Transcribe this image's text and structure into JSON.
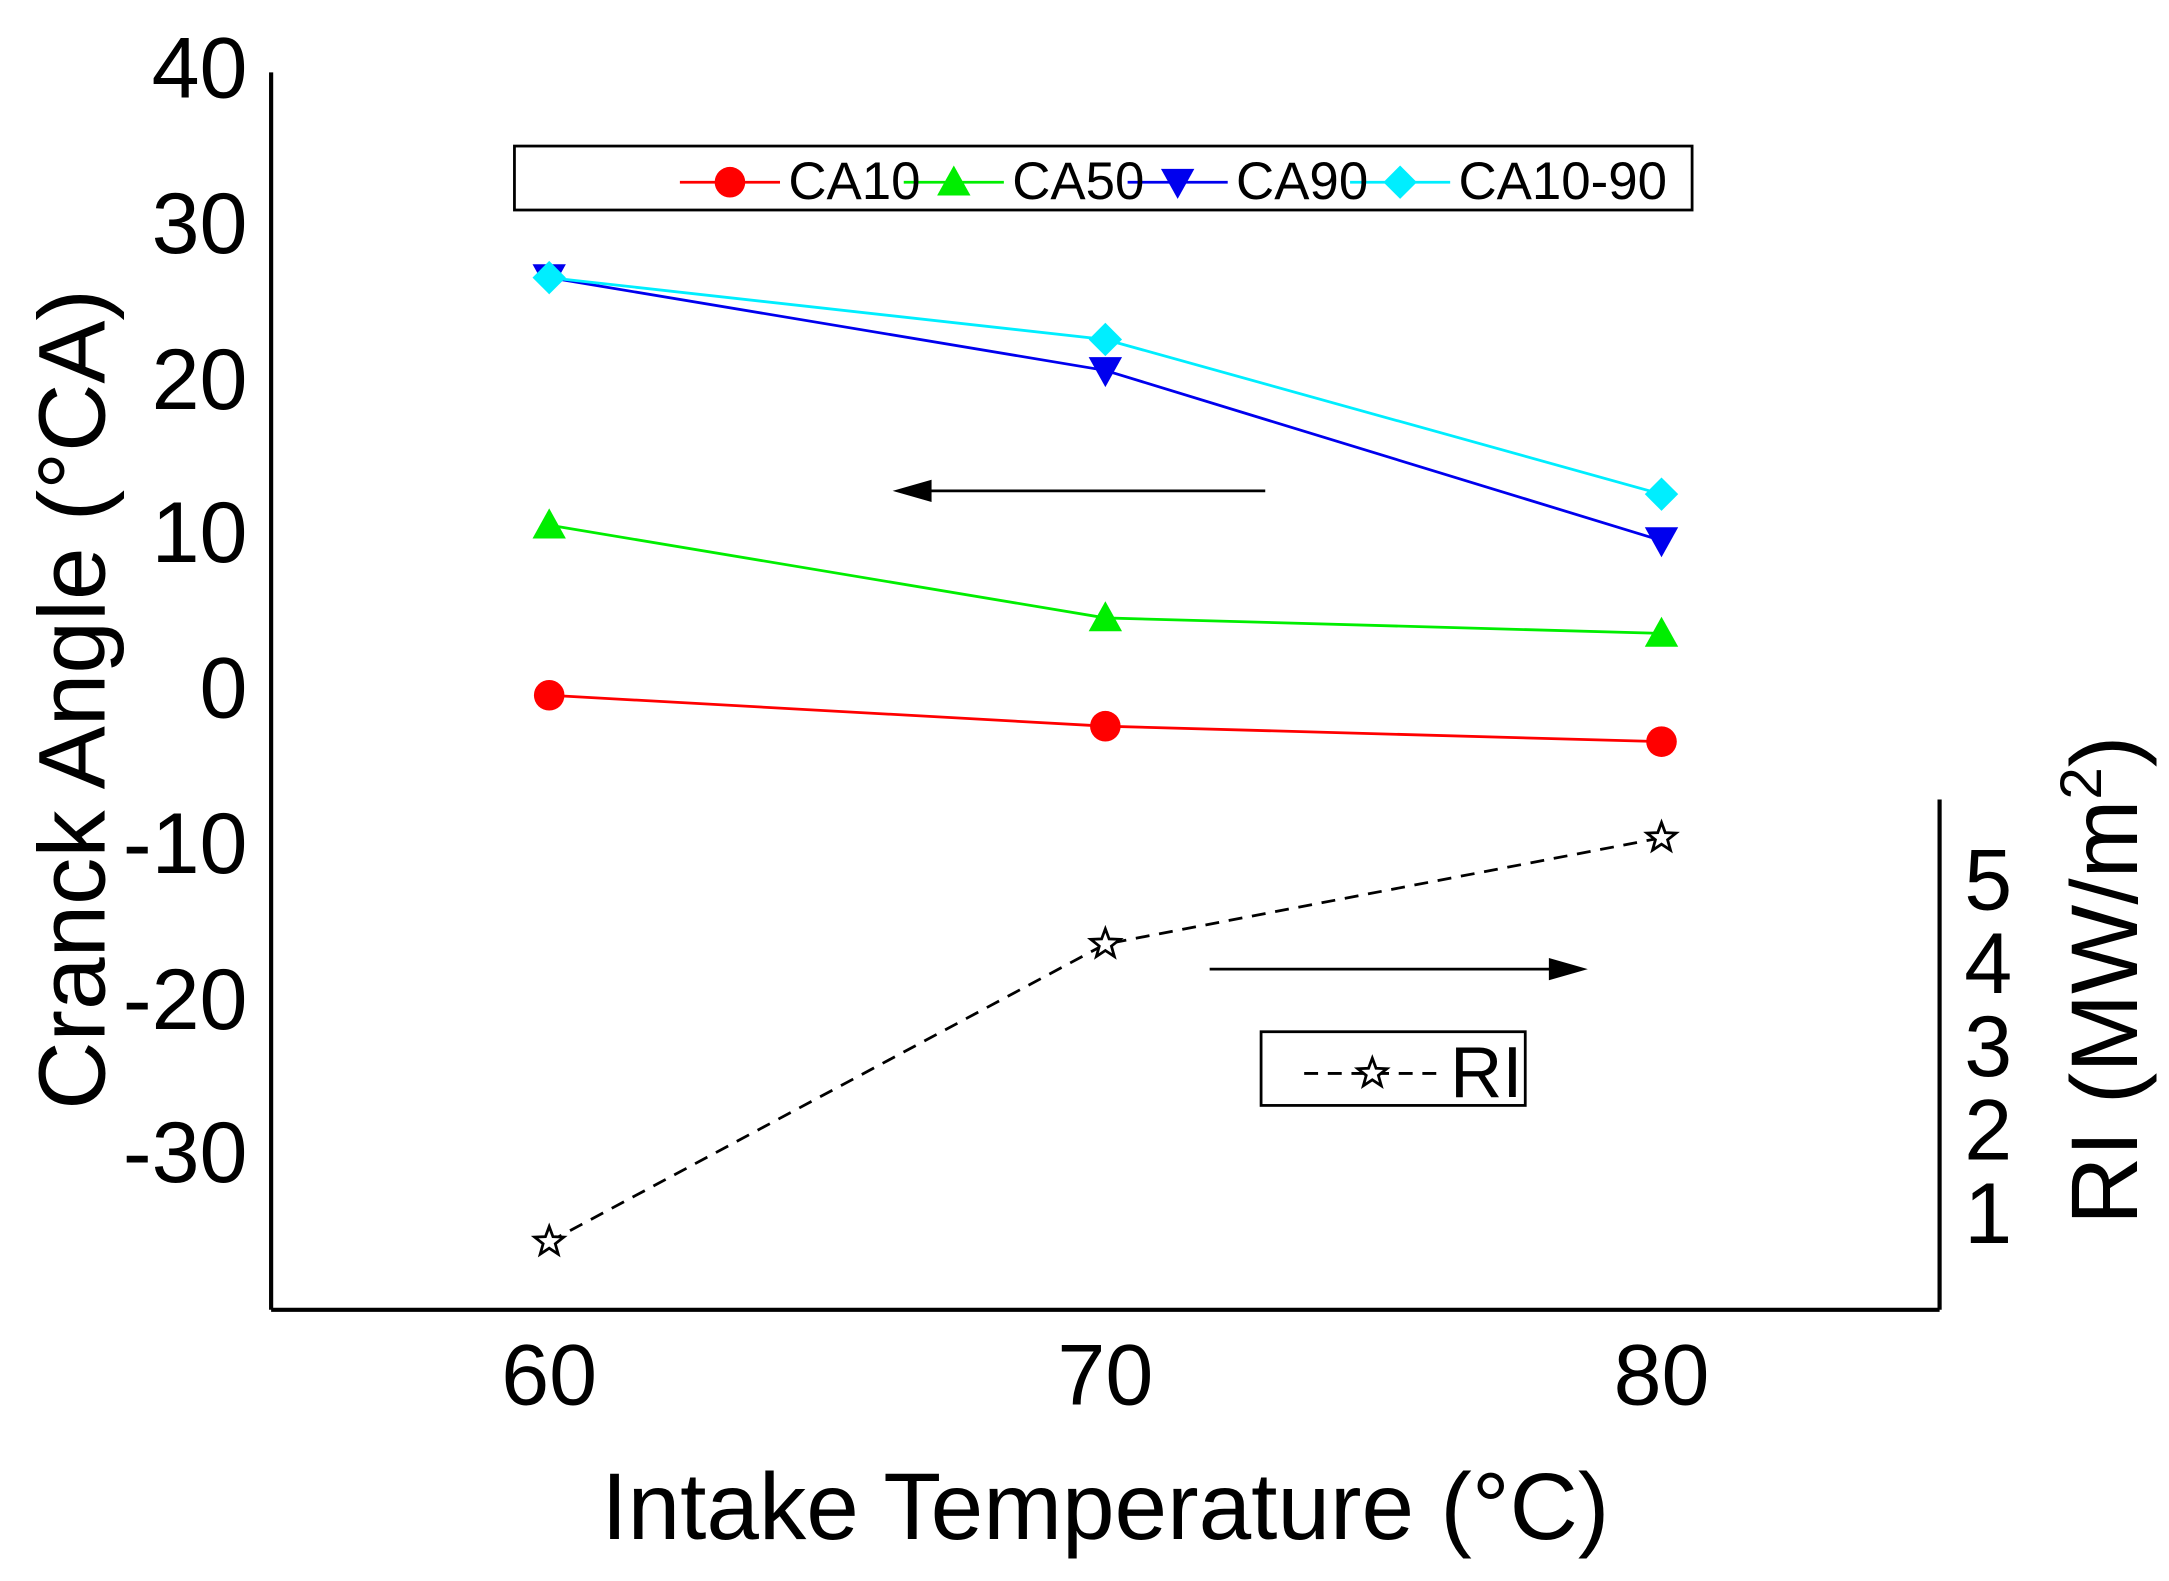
{
  "chart_data": {
    "type": "line",
    "title": "",
    "xlabel": "Intake Temperature (°C)",
    "ylabel": "Cranck Angle (°CA)",
    "y2label": "RI (MW/m",
    "y2label_sup": "2",
    "y2label_close": ")",
    "x": [
      60,
      70,
      80
    ],
    "x_ticks": [
      "60",
      "70",
      "80"
    ],
    "xlim": [
      55,
      85
    ],
    "ylim": [
      -40,
      40
    ],
    "y_ticks": [
      "40",
      "30",
      "20",
      "10",
      "0",
      "-10",
      "-20",
      "-30"
    ],
    "y2lim": [
      0.2,
      6.2
    ],
    "y2_ticks": [
      "5",
      "4",
      "3",
      "2",
      "1"
    ],
    "series": [
      {
        "name": "CA10",
        "axis": "left",
        "color": "#ff0000",
        "marker": "circle",
        "values": [
          0,
          -2,
          -3
        ]
      },
      {
        "name": "CA50",
        "axis": "left",
        "color": "#00ee00",
        "marker": "triangle-up",
        "values": [
          11,
          5,
          4
        ]
      },
      {
        "name": "CA90",
        "axis": "left",
        "color": "#0000ee",
        "marker": "triangle-down",
        "values": [
          27,
          21,
          10
        ]
      },
      {
        "name": "CA10-90",
        "axis": "left",
        "color": "#00eeff",
        "marker": "diamond",
        "values": [
          27,
          23,
          13
        ]
      },
      {
        "name": "RI",
        "axis": "right",
        "color": "#000000",
        "marker": "star",
        "dashed": true,
        "values": [
          1.0,
          4.5,
          5.75
        ]
      }
    ],
    "legend_top": [
      "CA10",
      "CA50",
      "CA90",
      "CA10-90"
    ],
    "legend_ri": "RI"
  }
}
